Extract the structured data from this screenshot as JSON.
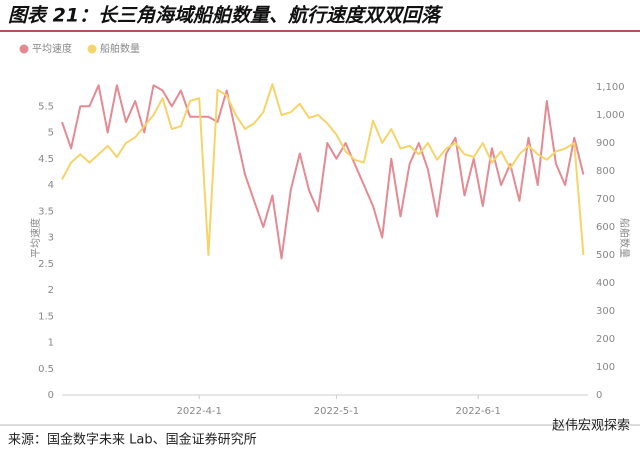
{
  "chart_data": {
    "type": "line",
    "title": "图表 21：长三角海域船舶数量、航行速度双双回落",
    "ylabel": "平均速度",
    "y2label": "船舶数量",
    "source": "来源：国金数字未来 Lab、国金证券研究所",
    "watermark": "赵伟宏观探索",
    "x": [
      "2022-3-2",
      "2022-3-4",
      "2022-3-6",
      "2022-3-8",
      "2022-3-10",
      "2022-3-12",
      "2022-3-14",
      "2022-3-16",
      "2022-3-18",
      "2022-3-20",
      "2022-3-22",
      "2022-3-24",
      "2022-3-26",
      "2022-3-28",
      "2022-3-30",
      "2022-4-1",
      "2022-4-3",
      "2022-4-5",
      "2022-4-7",
      "2022-4-9",
      "2022-4-11",
      "2022-4-13",
      "2022-4-15",
      "2022-4-17",
      "2022-4-19",
      "2022-4-21",
      "2022-4-23",
      "2022-4-25",
      "2022-4-27",
      "2022-4-29",
      "2022-5-1",
      "2022-5-3",
      "2022-5-5",
      "2022-5-7",
      "2022-5-9",
      "2022-5-11",
      "2022-5-13",
      "2022-5-15",
      "2022-5-17",
      "2022-5-19",
      "2022-5-21",
      "2022-5-23",
      "2022-5-25",
      "2022-5-27",
      "2022-5-29",
      "2022-5-31",
      "2022-6-2",
      "2022-6-4",
      "2022-6-6",
      "2022-6-8",
      "2022-6-10",
      "2022-6-12",
      "2022-6-14",
      "2022-6-16",
      "2022-6-18",
      "2022-6-20",
      "2022-6-22",
      "2022-6-24"
    ],
    "xlim": [
      "2022-3-2",
      "2022-6-25"
    ],
    "xticks": [
      "2022-4-1",
      "2022-5-1",
      "2022-6-1"
    ],
    "ylim": [
      0,
      6
    ],
    "yticks": [
      0,
      0.5,
      1,
      1.5,
      2,
      2.5,
      3,
      3.5,
      4,
      4.5,
      5,
      5.5
    ],
    "y2lim": [
      0,
      1125
    ],
    "y2ticks": [
      0,
      100,
      200,
      300,
      400,
      500,
      600,
      700,
      800,
      900,
      {
        "value": 1000,
        "label": "1,000"
      },
      {
        "value": 1100,
        "label": "1,100"
      }
    ],
    "series": [
      {
        "name": "平均速度",
        "color": "#e58a93",
        "values": [
          5.2,
          4.7,
          5.5,
          5.5,
          5.9,
          5.0,
          5.9,
          5.2,
          5.6,
          5.0,
          5.9,
          5.8,
          5.5,
          5.8,
          5.3,
          5.3,
          5.3,
          5.2,
          5.8,
          5.0,
          4.2,
          3.7,
          3.2,
          3.8,
          2.6,
          3.9,
          4.6,
          3.9,
          3.5,
          4.8,
          4.5,
          4.8,
          4.4,
          4.0,
          3.6,
          3.0,
          4.5,
          3.4,
          4.4,
          4.8,
          4.3,
          3.4,
          4.6,
          4.9,
          3.8,
          4.5,
          3.6,
          4.7,
          4.0,
          4.4,
          3.7,
          4.9,
          4.0,
          5.6,
          4.4,
          4.0,
          4.9,
          4.2
        ]
      },
      {
        "name": "船舶数量",
        "color": "#f5d46a",
        "axis": "y2",
        "values": [
          770,
          830,
          860,
          830,
          860,
          890,
          850,
          900,
          920,
          960,
          1000,
          1060,
          950,
          960,
          1050,
          1060,
          500,
          1090,
          1070,
          1000,
          950,
          970,
          1010,
          1110,
          1000,
          1010,
          1040,
          990,
          1000,
          970,
          930,
          870,
          840,
          830,
          980,
          900,
          950,
          880,
          890,
          860,
          900,
          840,
          880,
          900,
          860,
          850,
          900,
          830,
          870,
          810,
          860,
          890,
          860,
          840,
          870,
          880,
          900,
          500
        ]
      }
    ]
  }
}
